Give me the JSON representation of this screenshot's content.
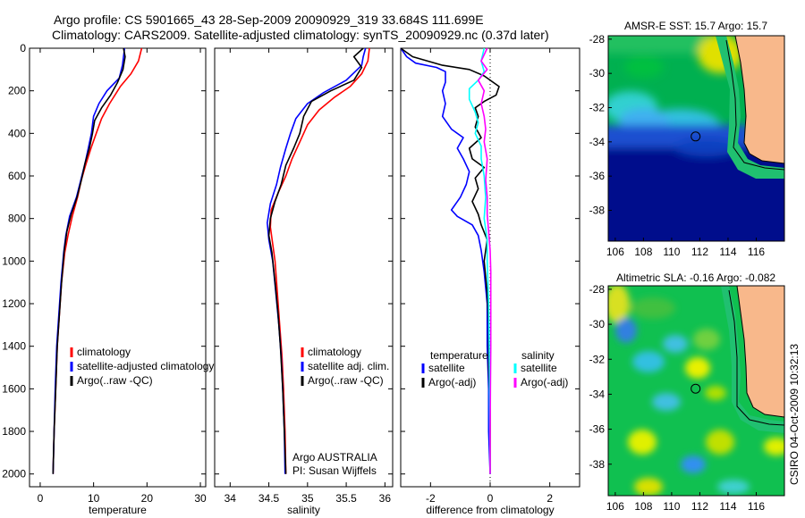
{
  "header": {
    "line1": "Argo profile: CS 5901665_43 28-Sep-2009 20090929_319 33.684S 111.699E",
    "line2": "Climatology: CARS2009. Satellite-adjusted climatology: synTS_20090929.nc (0.37d later)"
  },
  "side_stamp": "CSIRO 04-Oct-2009 10:32:13",
  "colors": {
    "climatology": "#ff0000",
    "satellite": "#0000ff",
    "argo": "#000000",
    "salinity_satellite": "#00ffff",
    "salinity_argo": "#ff00ff",
    "land": "#f8b88b"
  },
  "chart_data": [
    {
      "type": "line",
      "xlabel": "temperature",
      "xlim": [
        -2,
        31
      ],
      "ylim": [
        2060,
        0
      ],
      "xticks": [
        "0",
        "10",
        "20",
        "30"
      ],
      "yticks": [
        "0",
        "200",
        "400",
        "600",
        "800",
        "1000",
        "1200",
        "1400",
        "1600",
        "1800",
        "2000"
      ],
      "legend": [
        "climatology",
        "satellite-adjusted climatology",
        "Argo(..raw -QC)"
      ],
      "series": [
        {
          "name": "climatology",
          "color": "#ff0000",
          "points": [
            [
              19.0,
              0
            ],
            [
              18.4,
              60
            ],
            [
              17.0,
              120
            ],
            [
              15.0,
              180
            ],
            [
              13.0,
              260
            ],
            [
              11.5,
              330
            ],
            [
              10.5,
              400
            ],
            [
              9.5,
              470
            ],
            [
              8.5,
              550
            ],
            [
              7.7,
              620
            ],
            [
              7.0,
              700
            ],
            [
              6.0,
              790
            ],
            [
              5.2,
              880
            ],
            [
              4.6,
              960
            ],
            [
              4.0,
              1100
            ],
            [
              3.6,
              1250
            ],
            [
              3.2,
              1400
            ],
            [
              2.9,
              1600
            ],
            [
              2.6,
              1800
            ],
            [
              2.4,
              2000
            ]
          ]
        },
        {
          "name": "satellite-adjusted climatology",
          "color": "#0000ff",
          "points": [
            [
              15.8,
              0
            ],
            [
              15.6,
              40
            ],
            [
              15.4,
              80
            ],
            [
              14.8,
              140
            ],
            [
              12.5,
              200
            ],
            [
              11.0,
              260
            ],
            [
              10.0,
              320
            ],
            [
              9.6,
              400
            ],
            [
              9.0,
              470
            ],
            [
              8.4,
              540
            ],
            [
              7.6,
              620
            ],
            [
              6.8,
              700
            ],
            [
              5.5,
              790
            ],
            [
              4.8,
              880
            ],
            [
              4.4,
              960
            ],
            [
              3.9,
              1100
            ],
            [
              3.5,
              1250
            ],
            [
              3.1,
              1400
            ],
            [
              2.8,
              1600
            ],
            [
              2.6,
              1800
            ],
            [
              2.4,
              2000
            ]
          ]
        },
        {
          "name": "Argo(..raw -QC)",
          "color": "#000000",
          "points": [
            [
              15.6,
              0
            ],
            [
              15.9,
              40
            ],
            [
              15.5,
              100
            ],
            [
              14.5,
              160
            ],
            [
              13.2,
              220
            ],
            [
              11.5,
              280
            ],
            [
              10.2,
              340
            ],
            [
              9.8,
              400
            ],
            [
              9.2,
              470
            ],
            [
              8.4,
              540
            ],
            [
              7.7,
              620
            ],
            [
              6.9,
              700
            ],
            [
              5.8,
              780
            ],
            [
              5.0,
              860
            ],
            [
              4.5,
              950
            ],
            [
              4.0,
              1100
            ],
            [
              3.6,
              1250
            ],
            [
              3.2,
              1400
            ],
            [
              2.9,
              1600
            ],
            [
              2.6,
              1800
            ],
            [
              2.4,
              2000
            ]
          ]
        }
      ]
    },
    {
      "type": "line",
      "xlabel": "salinity",
      "xlim": [
        33.8,
        36.1
      ],
      "ylim": [
        2060,
        0
      ],
      "xticks": [
        "34",
        "34.5",
        "35",
        "35.5",
        "36"
      ],
      "legend": [
        "climatology",
        "satellite adj. clim.",
        "Argo(..raw -QC)"
      ],
      "annotation": [
        "Argo AUSTRALIA",
        "PI: Susan Wijffels"
      ],
      "series": [
        {
          "name": "climatology",
          "color": "#ff0000",
          "points": [
            [
              35.8,
              0
            ],
            [
              35.78,
              60
            ],
            [
              35.7,
              120
            ],
            [
              35.55,
              180
            ],
            [
              35.35,
              230
            ],
            [
              35.15,
              290
            ],
            [
              35.0,
              360
            ],
            [
              34.9,
              440
            ],
            [
              34.8,
              520
            ],
            [
              34.72,
              600
            ],
            [
              34.62,
              680
            ],
            [
              34.53,
              760
            ],
            [
              34.52,
              840
            ],
            [
              34.55,
              920
            ],
            [
              34.58,
              1000
            ],
            [
              34.61,
              1150
            ],
            [
              34.64,
              1300
            ],
            [
              34.67,
              1450
            ],
            [
              34.69,
              1600
            ],
            [
              34.71,
              1800
            ],
            [
              34.72,
              2000
            ]
          ]
        },
        {
          "name": "satellite adj. clim.",
          "color": "#0000ff",
          "points": [
            [
              35.75,
              0
            ],
            [
              35.72,
              40
            ],
            [
              35.7,
              80
            ],
            [
              35.5,
              150
            ],
            [
              35.2,
              210
            ],
            [
              35.0,
              260
            ],
            [
              34.85,
              330
            ],
            [
              34.78,
              400
            ],
            [
              34.72,
              470
            ],
            [
              34.65,
              560
            ],
            [
              34.6,
              640
            ],
            [
              34.52,
              730
            ],
            [
              34.48,
              820
            ],
            [
              34.5,
              900
            ],
            [
              34.55,
              1000
            ],
            [
              34.59,
              1150
            ],
            [
              34.63,
              1300
            ],
            [
              34.66,
              1450
            ],
            [
              34.68,
              1600
            ],
            [
              34.7,
              1800
            ],
            [
              34.71,
              2000
            ]
          ]
        },
        {
          "name": "Argo(..raw -QC)",
          "color": "#000000",
          "points": [
            [
              35.72,
              0
            ],
            [
              35.6,
              40
            ],
            [
              35.7,
              90
            ],
            [
              35.6,
              150
            ],
            [
              35.3,
              200
            ],
            [
              35.05,
              250
            ],
            [
              34.95,
              320
            ],
            [
              34.9,
              400
            ],
            [
              34.82,
              470
            ],
            [
              34.72,
              550
            ],
            [
              34.66,
              640
            ],
            [
              34.58,
              720
            ],
            [
              34.52,
              800
            ],
            [
              34.5,
              880
            ],
            [
              34.54,
              960
            ],
            [
              34.58,
              1100
            ],
            [
              34.62,
              1250
            ],
            [
              34.65,
              1400
            ],
            [
              34.68,
              1600
            ],
            [
              34.7,
              1800
            ],
            [
              34.72,
              2000
            ]
          ]
        }
      ]
    },
    {
      "type": "line",
      "xlabel": "difference from climatology",
      "xlim": [
        -3,
        3
      ],
      "ylim": [
        2060,
        0
      ],
      "xticks": [
        "-2",
        "0",
        "2"
      ],
      "legend_headers": [
        "temperature",
        "salinity"
      ],
      "legend": [
        "satellite",
        "Argo(-adj)",
        "satellite",
        "Argo(-adj)"
      ],
      "series": [
        {
          "name": "satellite",
          "group": "temperature",
          "color": "#0000ff",
          "points": [
            [
              -3.0,
              0
            ],
            [
              -2.8,
              40
            ],
            [
              -2.5,
              70
            ],
            [
              -1.8,
              90
            ],
            [
              -1.5,
              110
            ],
            [
              -1.5,
              160
            ],
            [
              -1.6,
              200
            ],
            [
              -1.5,
              260
            ],
            [
              -1.6,
              320
            ],
            [
              -1.3,
              380
            ],
            [
              -0.9,
              420
            ],
            [
              -1.1,
              470
            ],
            [
              -0.9,
              520
            ],
            [
              -0.7,
              580
            ],
            [
              -0.8,
              640
            ],
            [
              -1.0,
              700
            ],
            [
              -1.3,
              760
            ],
            [
              -1.1,
              790
            ],
            [
              -0.6,
              830
            ],
            [
              -0.4,
              880
            ],
            [
              -0.3,
              950
            ],
            [
              -0.2,
              1050
            ],
            [
              -0.1,
              1200
            ],
            [
              -0.1,
              1400
            ],
            [
              -0.05,
              1600
            ],
            [
              -0.05,
              1800
            ],
            [
              0.0,
              2000
            ]
          ]
        },
        {
          "name": "Argo(-adj)",
          "group": "temperature",
          "color": "#000000",
          "points": [
            [
              -3.0,
              0
            ],
            [
              -2.6,
              40
            ],
            [
              -1.6,
              80
            ],
            [
              -0.7,
              100
            ],
            [
              -0.2,
              130
            ],
            [
              0.3,
              180
            ],
            [
              0.2,
              220
            ],
            [
              -0.2,
              250
            ],
            [
              -0.5,
              280
            ],
            [
              -0.4,
              320
            ],
            [
              -0.5,
              370
            ],
            [
              -0.3,
              420
            ],
            [
              -0.7,
              470
            ],
            [
              -0.6,
              520
            ],
            [
              -0.2,
              560
            ],
            [
              -0.5,
              610
            ],
            [
              -0.4,
              660
            ],
            [
              -0.6,
              720
            ],
            [
              -0.4,
              780
            ],
            [
              -0.3,
              830
            ],
            [
              -0.1,
              900
            ],
            [
              -0.2,
              1000
            ],
            [
              -0.1,
              1150
            ],
            [
              -0.05,
              1300
            ],
            [
              -0.05,
              1500
            ],
            [
              0.0,
              1700
            ],
            [
              0.0,
              2000
            ]
          ]
        },
        {
          "name": "satellite",
          "group": "salinity",
          "color": "#00ffff",
          "points": [
            [
              -0.2,
              0
            ],
            [
              -0.3,
              60
            ],
            [
              -0.2,
              110
            ],
            [
              -0.4,
              150
            ],
            [
              -0.7,
              190
            ],
            [
              -0.7,
              240
            ],
            [
              -0.5,
              300
            ],
            [
              -0.4,
              350
            ],
            [
              -0.5,
              400
            ],
            [
              -0.3,
              460
            ],
            [
              -0.3,
              520
            ],
            [
              -0.2,
              600
            ],
            [
              -0.15,
              700
            ],
            [
              -0.2,
              800
            ],
            [
              -0.1,
              900
            ],
            [
              -0.1,
              1000
            ],
            [
              -0.05,
              1200
            ],
            [
              -0.03,
              1400
            ],
            [
              -0.02,
              1600
            ],
            [
              -0.01,
              1800
            ],
            [
              0.0,
              2000
            ]
          ]
        },
        {
          "name": "Argo(-adj)",
          "group": "salinity",
          "color": "#ff00ff",
          "points": [
            [
              -0.1,
              0
            ],
            [
              -0.3,
              60
            ],
            [
              -0.1,
              100
            ],
            [
              -0.4,
              150
            ],
            [
              -0.2,
              200
            ],
            [
              -0.3,
              260
            ],
            [
              -0.2,
              320
            ],
            [
              -0.15,
              380
            ],
            [
              -0.2,
              440
            ],
            [
              -0.1,
              520
            ],
            [
              -0.15,
              620
            ],
            [
              -0.1,
              700
            ],
            [
              -0.1,
              780
            ],
            [
              -0.05,
              860
            ],
            [
              0.0,
              950
            ],
            [
              0.02,
              1050
            ],
            [
              0.02,
              1200
            ],
            [
              0.02,
              1400
            ],
            [
              0.01,
              1600
            ],
            [
              0.0,
              1800
            ],
            [
              0.0,
              2000
            ]
          ]
        }
      ]
    },
    {
      "type": "heatmap",
      "title": "AMSR-E SST: 15.7 Argo: 15.7",
      "xlim": [
        105.5,
        118
      ],
      "ylim": [
        -39.8,
        -27.8
      ],
      "xticks": [
        "106",
        "108",
        "110",
        "112",
        "114",
        "116"
      ],
      "yticks": [
        "-28",
        "-30",
        "-32",
        "-34",
        "-36",
        "-38"
      ],
      "marker": [
        111.699,
        -33.684
      ]
    },
    {
      "type": "heatmap",
      "title": "Altimetric SLA: -0.16 Argo: -0.082",
      "xlim": [
        105.5,
        118
      ],
      "ylim": [
        -39.8,
        -27.8
      ],
      "xticks": [
        "106",
        "108",
        "110",
        "112",
        "114",
        "116"
      ],
      "yticks": [
        "-28",
        "-30",
        "-32",
        "-34",
        "-36",
        "-38"
      ],
      "marker": [
        111.699,
        -33.684
      ]
    }
  ]
}
